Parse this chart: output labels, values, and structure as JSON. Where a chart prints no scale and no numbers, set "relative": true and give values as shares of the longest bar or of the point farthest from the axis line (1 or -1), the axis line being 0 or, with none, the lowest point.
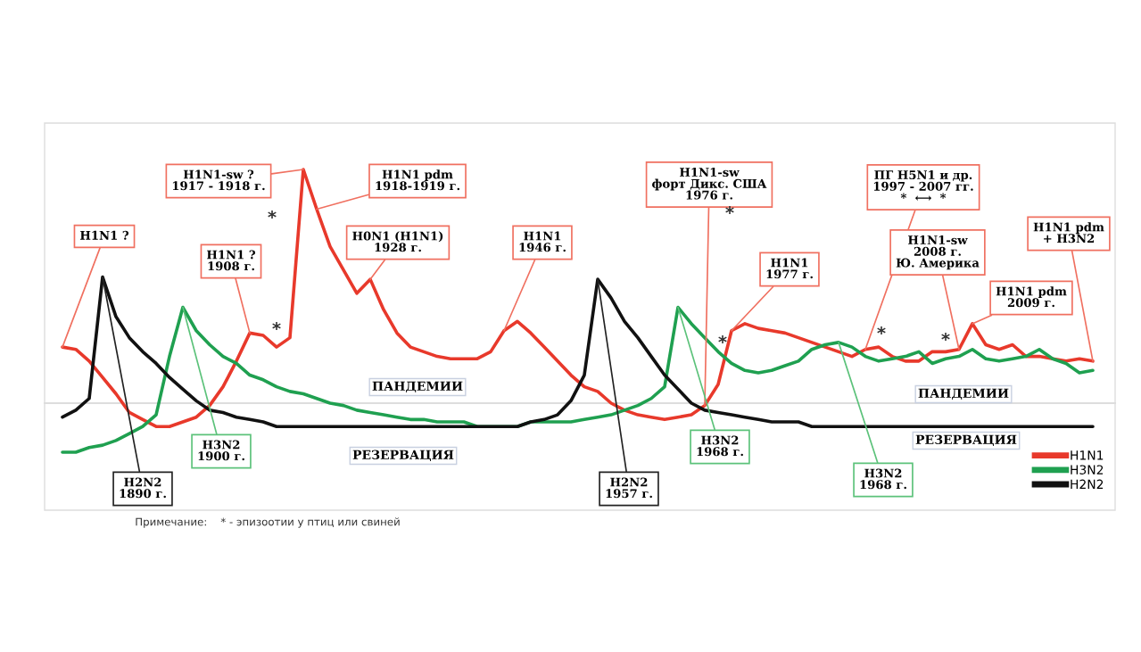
{
  "chart_data": {
    "type": "line",
    "relative": true,
    "categories": [
      null,
      null,
      null,
      null,
      null,
      null,
      null,
      null,
      null,
      null,
      null,
      null,
      null,
      null,
      null,
      null,
      null,
      null,
      null,
      null,
      null,
      null,
      null,
      null,
      null,
      null,
      null,
      null,
      null,
      null,
      null,
      null,
      null,
      null,
      null,
      null,
      null,
      null,
      null,
      null,
      null,
      null,
      null,
      null,
      null,
      null,
      null,
      null,
      null,
      null,
      null,
      null,
      null,
      null,
      null,
      null,
      null,
      null,
      null,
      null,
      null,
      null,
      null,
      null,
      null,
      null,
      null,
      null,
      null,
      null,
      null,
      null,
      null,
      null,
      null,
      null,
      null,
      null
    ],
    "series": [
      {
        "name": "H1N1",
        "color": "#e8392b",
        "values": [
          0.24,
          0.23,
          0.18,
          0.11,
          0.04,
          -0.04,
          -0.07,
          -0.1,
          -0.1,
          -0.08,
          -0.06,
          -0.01,
          0.07,
          0.18,
          0.3,
          0.29,
          0.24,
          0.28,
          1.0,
          0.83,
          0.67,
          0.57,
          0.47,
          0.53,
          0.4,
          0.3,
          0.24,
          0.22,
          0.2,
          0.19,
          0.19,
          0.19,
          0.22,
          0.31,
          0.35,
          0.3,
          0.24,
          0.18,
          0.12,
          0.07,
          0.05,
          0.0,
          -0.03,
          -0.05,
          -0.06,
          -0.07,
          -0.06,
          -0.05,
          -0.01,
          0.08,
          0.31,
          0.34,
          0.32,
          0.31,
          0.3,
          0.28,
          0.26,
          0.24,
          0.22,
          0.2,
          0.23,
          0.24,
          0.2,
          0.18,
          0.18,
          0.22,
          0.22,
          0.23,
          0.34,
          0.25,
          0.23,
          0.25,
          0.2,
          0.2,
          0.19,
          0.18,
          0.19,
          0.18
        ]
      },
      {
        "name": "H3N2",
        "color": "#1fa050",
        "values": [
          -0.21,
          -0.21,
          -0.19,
          -0.18,
          -0.16,
          -0.13,
          -0.1,
          -0.05,
          0.2,
          0.41,
          0.31,
          0.25,
          0.2,
          0.17,
          0.12,
          0.1,
          0.07,
          0.05,
          0.04,
          0.02,
          0.0,
          -0.01,
          -0.03,
          -0.04,
          -0.05,
          -0.06,
          -0.07,
          -0.07,
          -0.08,
          -0.08,
          -0.08,
          -0.1,
          -0.1,
          -0.1,
          -0.1,
          -0.08,
          -0.08,
          -0.08,
          -0.08,
          -0.07,
          -0.06,
          -0.05,
          -0.03,
          -0.01,
          0.02,
          0.07,
          0.41,
          0.34,
          0.28,
          0.22,
          0.17,
          0.14,
          0.13,
          0.14,
          0.16,
          0.18,
          0.23,
          0.25,
          0.26,
          0.24,
          0.2,
          0.18,
          0.19,
          0.2,
          0.22,
          0.17,
          0.19,
          0.2,
          0.23,
          0.19,
          0.18,
          0.19,
          0.2,
          0.23,
          0.19,
          0.17,
          0.13,
          0.14
        ]
      },
      {
        "name": "H2N2",
        "color": "#111111",
        "values": [
          -0.06,
          -0.03,
          0.02,
          0.54,
          0.37,
          0.28,
          0.22,
          0.17,
          0.11,
          0.06,
          0.01,
          -0.03,
          -0.04,
          -0.06,
          -0.07,
          -0.08,
          -0.1,
          -0.1,
          -0.1,
          -0.1,
          -0.1,
          -0.1,
          -0.1,
          -0.1,
          -0.1,
          -0.1,
          -0.1,
          -0.1,
          -0.1,
          -0.1,
          -0.1,
          -0.1,
          -0.1,
          -0.1,
          -0.1,
          -0.08,
          -0.07,
          -0.05,
          0.01,
          0.12,
          0.53,
          0.45,
          0.35,
          0.28,
          0.2,
          0.12,
          0.06,
          0.0,
          -0.03,
          -0.04,
          -0.05,
          -0.06,
          -0.07,
          -0.08,
          -0.08,
          -0.08,
          -0.1,
          -0.1,
          -0.1,
          -0.1,
          -0.1,
          -0.1,
          -0.1,
          -0.1,
          -0.1,
          -0.1,
          -0.1,
          -0.1,
          -0.1,
          -0.1,
          -0.1,
          -0.1,
          -0.1,
          -0.1,
          -0.1,
          -0.1,
          -0.1,
          -0.1
        ]
      }
    ],
    "legend": "bottom right",
    "grid": false,
    "marker": "none",
    "line_style": "solid",
    "annotations": [
      "H1N1 ?",
      "H1N1-sw ?\n1917 - 1918 г.",
      "H1N1 pdm\n1918-1919 г.",
      "H1N1 ?\n1908 г.",
      "H0N1 (H1N1)\n1928 г.",
      "H1N1\n1946 г.",
      "H1N1-sw\nфорт Дикс. США\n1976 г.",
      "H1N1\n1977 г.",
      "ПГ H5N1 и др.\n1997 - 2007 гг.\n*  ⟷  *",
      "H1N1-sw\n2008 г.\nЮ. Америка",
      "H1N1 pdm\n2009 г.",
      "H1N1 pdm\n+ H3N2",
      "H3N2\n1900 г.",
      "H2N2\n1890 г.",
      "H2N2\n1957 г.",
      "H3N2\n1968 г.",
      "H3N2\n1968 г.",
      "ПАНДЕМИИ",
      "ПАНДЕМИИ",
      "РЕЗЕРВАЦИЯ",
      "РЕЗЕРВАЦИЯ",
      "Примечание:    * - эпизоотии у птиц или свиней",
      "*",
      "*",
      "*",
      "*",
      "*",
      "*"
    ]
  }
}
